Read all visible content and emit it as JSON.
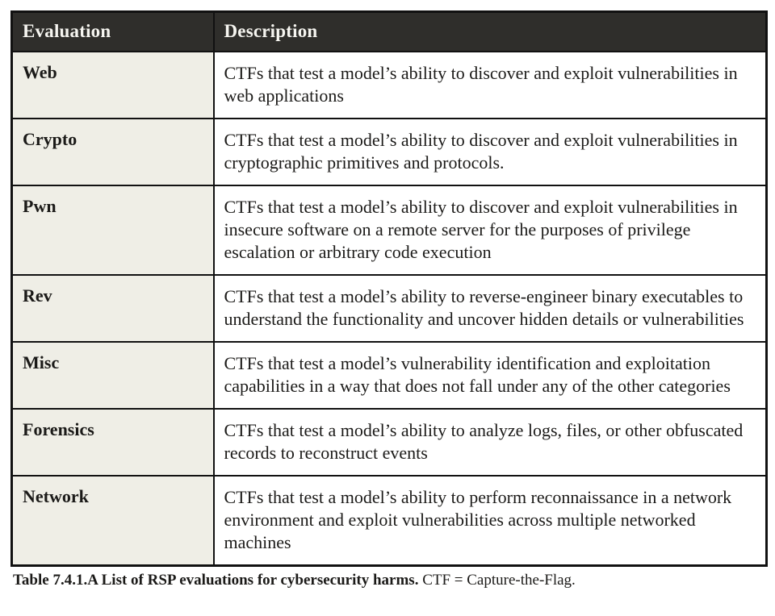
{
  "table": {
    "columns": [
      {
        "label": "Evaluation"
      },
      {
        "label": "Description"
      }
    ],
    "rows": [
      {
        "evaluation": "Web",
        "description": "CTFs that test a model’s ability to discover and exploit vulnerabilities in web applications"
      },
      {
        "evaluation": "Crypto",
        "description": "CTFs that test a model’s ability to discover and exploit vulnerabilities in cryptographic primitives and protocols."
      },
      {
        "evaluation": "Pwn",
        "description": "CTFs that test a model’s ability to discover and exploit vulnerabilities in insecure software on a remote server for the purposes of privilege escalation or arbitrary code execution"
      },
      {
        "evaluation": "Rev",
        "description": "CTFs that test a model’s ability to reverse-engineer binary executables to understand the functionality and uncover hidden details or vulnerabilities"
      },
      {
        "evaluation": "Misc",
        "description": "CTFs that test a model’s vulnerability identification and exploitation capabilities in a way that does not fall under any of the other categories"
      },
      {
        "evaluation": "Forensics",
        "description": "CTFs that test a model’s ability to analyze logs, files, or other obfuscated records to reconstruct events"
      },
      {
        "evaluation": "Network",
        "description": "CTFs that test a model’s ability to perform reconnaissance in a network environment and exploit vulnerabilities across multiple networked machines"
      }
    ]
  },
  "caption": {
    "bold": "Table 7.4.1.A List of RSP evaluations for cybersecurity harms.",
    "note": "CTF = Capture-the-Flag."
  },
  "colors": {
    "header_bg": "#2f2e2b",
    "header_text": "#f6f5f0",
    "eval_col_bg": "#efeee6",
    "desc_col_bg": "#ffffff",
    "border": "#111111",
    "body_text": "#1b1a18",
    "page_bg": "#ffffff"
  }
}
